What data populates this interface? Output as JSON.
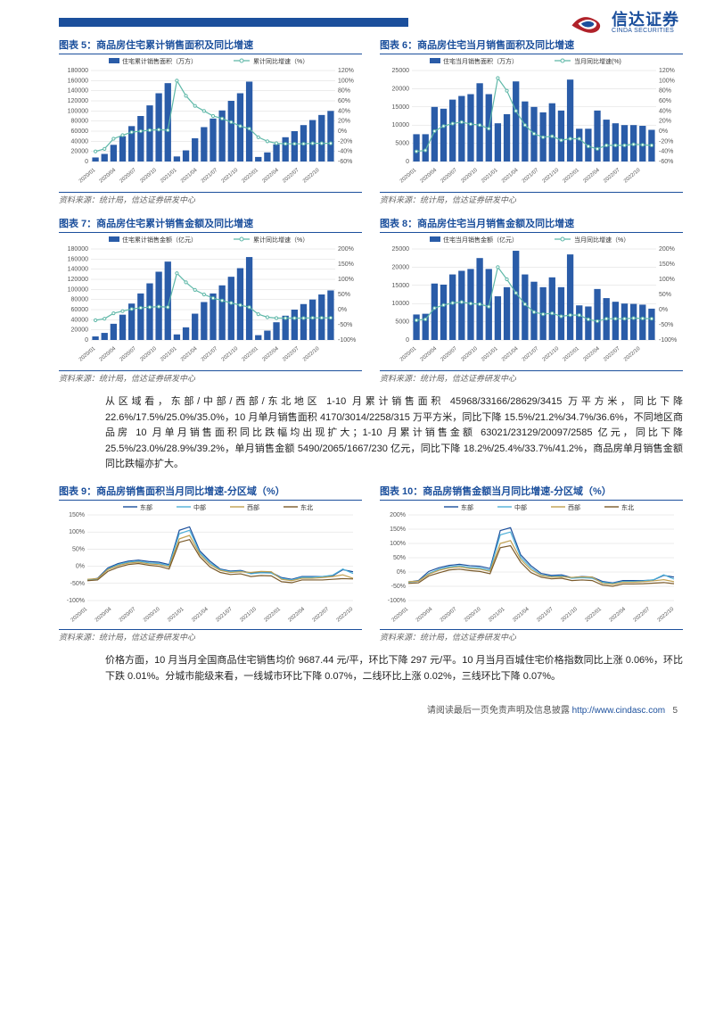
{
  "logo": {
    "cn": "信达证券",
    "en": "CINDA SECURITIES"
  },
  "charts": {
    "c5": {
      "title": "图表 5：商品房住宅累计销售面积及同比增速",
      "legend_bar": "住宅累计销售面积（万方）",
      "legend_line": "累计同比增速（%）",
      "y1_max": 180000,
      "y1_step": 20000,
      "y2_min": -60,
      "y2_max": 120,
      "y2_step": 20,
      "x_labels": [
        "2020/01",
        "2020/04",
        "2020/07",
        "2020/10",
        "2021/01",
        "2021/04",
        "2021/07",
        "2021/10",
        "2022/01",
        "2022/04",
        "2022/07",
        "2022/10"
      ],
      "bars": [
        8000,
        15000,
        33000,
        50000,
        70000,
        90000,
        111000,
        135000,
        155000,
        10000,
        22000,
        46000,
        68000,
        85000,
        101000,
        120000,
        135000,
        158000,
        9000,
        18000,
        34000,
        48000,
        60000,
        72000,
        82000,
        92000,
        100000
      ],
      "line": [
        -40,
        -35,
        -15,
        -8,
        -2,
        0,
        2,
        3,
        2,
        100,
        70,
        50,
        40,
        30,
        25,
        18,
        10,
        5,
        -12,
        -20,
        -24,
        -25,
        -25,
        -25,
        -24,
        -24,
        -24
      ],
      "colors": {
        "bar": "#2a5ca8",
        "line": "#5fb8a8",
        "grid": "#d8d8d8"
      }
    },
    "c6": {
      "title": "图表 6：商品房住宅当月销售面积及同比增速",
      "legend_bar": "住宅当月销售面积（万方）",
      "legend_line": "当月同比增速(%)",
      "y1_max": 25000,
      "y1_step": 5000,
      "y2_min": -60,
      "y2_max": 120,
      "y2_step": 20,
      "x_labels": [
        "2020/01",
        "2020/04",
        "2020/07",
        "2020/10",
        "2021/01",
        "2021/04",
        "2021/07",
        "2021/10",
        "2022/01",
        "2022/04",
        "2022/07",
        "2022/10"
      ],
      "bars": [
        7500,
        7500,
        15000,
        14500,
        17000,
        18000,
        18500,
        21500,
        18500,
        10500,
        13000,
        22000,
        16500,
        15000,
        13500,
        16000,
        14000,
        22500,
        9000,
        9000,
        14000,
        11500,
        10500,
        10000,
        10000,
        9800,
        8700
      ],
      "line": [
        -40,
        -38,
        0,
        10,
        15,
        18,
        14,
        12,
        5,
        105,
        80,
        40,
        12,
        -5,
        -12,
        -10,
        -18,
        -15,
        -15,
        -30,
        -35,
        -28,
        -28,
        -28,
        -26,
        -27,
        -28
      ],
      "colors": {
        "bar": "#2a5ca8",
        "line": "#5fb8a8",
        "grid": "#d8d8d8"
      }
    },
    "c7": {
      "title": "图表 7：商品房住宅累计销售金额及同比增速",
      "legend_bar": "住宅累计销售金额（亿元）",
      "legend_line": "累计同比增速（%）",
      "y1_max": 180000,
      "y1_step": 20000,
      "y2_min": -100,
      "y2_max": 200,
      "y2_step": 50,
      "x_labels": [
        "2020/01",
        "2020/04",
        "2020/07",
        "2020/10",
        "2021/01",
        "2021/04",
        "2021/07",
        "2021/10",
        "2022/01",
        "2022/04",
        "2022/07",
        "2022/10"
      ],
      "bars": [
        7000,
        14000,
        32000,
        50000,
        72000,
        92000,
        112000,
        135000,
        155000,
        11000,
        25000,
        52000,
        75000,
        92000,
        108000,
        125000,
        142000,
        164000,
        9500,
        18500,
        35000,
        48000,
        60000,
        71000,
        80000,
        90000,
        98000
      ],
      "line": [
        -35,
        -30,
        -12,
        -5,
        2,
        6,
        8,
        10,
        8,
        120,
        90,
        65,
        50,
        38,
        30,
        22,
        15,
        8,
        -15,
        -25,
        -28,
        -28,
        -28,
        -28,
        -27,
        -27,
        -27
      ],
      "colors": {
        "bar": "#2a5ca8",
        "line": "#5fb8a8",
        "grid": "#d8d8d8"
      }
    },
    "c8": {
      "title": "图表 8：商品房住宅当月销售金额及同比增速",
      "legend_bar": "住宅当月销售金额（亿元）",
      "legend_line": "当月同比增速（%）",
      "y1_max": 25000,
      "y1_step": 5000,
      "y2_min": -100,
      "y2_max": 200,
      "y2_step": 50,
      "x_labels": [
        "2020/01",
        "2020/04",
        "2020/07",
        "2020/10",
        "2021/01",
        "2021/04",
        "2021/07",
        "2021/10",
        "2022/01",
        "2022/04",
        "2022/07",
        "2022/10"
      ],
      "bars": [
        7000,
        7200,
        15500,
        15200,
        18000,
        19000,
        19500,
        22500,
        19500,
        12000,
        14500,
        24500,
        18000,
        16000,
        14500,
        17200,
        14500,
        23500,
        9500,
        9200,
        14000,
        11500,
        10500,
        10000,
        9900,
        9700,
        8600
      ],
      "line": [
        -35,
        -32,
        5,
        15,
        22,
        25,
        20,
        18,
        10,
        140,
        100,
        55,
        18,
        -8,
        -15,
        -12,
        -22,
        -18,
        -18,
        -32,
        -38,
        -30,
        -30,
        -30,
        -28,
        -29,
        -30
      ],
      "colors": {
        "bar": "#2a5ca8",
        "line": "#5fb8a8",
        "grid": "#d8d8d8"
      }
    },
    "c9": {
      "title": "图表 9：商品房销售面积当月同比增速-分区域（%）",
      "legend": [
        "东部",
        "中部",
        "西部",
        "东北"
      ],
      "y_min": -100,
      "y_max": 150,
      "y_step": 50,
      "x_labels": [
        "2020/01",
        "2020/04",
        "2020/07",
        "2020/10",
        "2021/01",
        "2021/04",
        "2021/07",
        "2021/10",
        "2022/01",
        "2022/04",
        "2022/07",
        "2022/10"
      ],
      "series": {
        "east": [
          -40,
          -35,
          -5,
          8,
          15,
          18,
          14,
          12,
          5,
          105,
          115,
          45,
          15,
          -8,
          -14,
          -12,
          -20,
          -17,
          -18,
          -33,
          -38,
          -30,
          -30,
          -30,
          -28,
          -10,
          -16
        ],
        "mid": [
          -40,
          -38,
          -8,
          5,
          12,
          15,
          10,
          8,
          2,
          95,
          105,
          40,
          10,
          -10,
          -16,
          -14,
          -22,
          -19,
          -20,
          -35,
          -40,
          -32,
          -32,
          -30,
          -26,
          -8,
          -21
        ],
        "west": [
          -38,
          -36,
          -10,
          2,
          9,
          12,
          7,
          5,
          -2,
          80,
          90,
          35,
          5,
          -12,
          -18,
          -16,
          -18,
          -15,
          -16,
          -38,
          -42,
          -35,
          -35,
          -33,
          -30,
          -25,
          -35
        ],
        "ne": [
          -42,
          -40,
          -15,
          -3,
          5,
          8,
          3,
          0,
          -8,
          70,
          78,
          28,
          -2,
          -18,
          -24,
          -22,
          -30,
          -27,
          -28,
          -45,
          -48,
          -40,
          -40,
          -40,
          -38,
          -36,
          -37
        ]
      },
      "colors": {
        "east": "#1b4f9c",
        "mid": "#4fb0d8",
        "west": "#c0a050",
        "ne": "#7a5a2a"
      }
    },
    "c10": {
      "title": "图表 10：商品房销售金额当月同比增速-分区域（%）",
      "legend": [
        "东部",
        "中部",
        "西部",
        "东北"
      ],
      "y_min": -100,
      "y_max": 200,
      "y_step": 50,
      "x_labels": [
        "2020/01",
        "2020/04",
        "2020/07",
        "2020/10",
        "2021/01",
        "2021/04",
        "2021/07",
        "2021/10",
        "2022/01",
        "2022/04",
        "2022/07",
        "2022/10"
      ],
      "series": {
        "east": [
          -35,
          -30,
          2,
          15,
          23,
          27,
          22,
          20,
          12,
          145,
          155,
          60,
          22,
          -5,
          -12,
          -10,
          -20,
          -16,
          -18,
          -33,
          -38,
          -30,
          -30,
          -30,
          -28,
          -12,
          -18
        ],
        "mid": [
          -36,
          -32,
          -5,
          10,
          18,
          22,
          16,
          14,
          6,
          130,
          140,
          52,
          15,
          -10,
          -16,
          -14,
          -22,
          -20,
          -22,
          -36,
          -40,
          -33,
          -33,
          -31,
          -27,
          -10,
          -25
        ],
        "west": [
          -34,
          -32,
          -8,
          6,
          14,
          18,
          12,
          10,
          2,
          100,
          110,
          44,
          8,
          -12,
          -18,
          -17,
          -19,
          -17,
          -18,
          -40,
          -43,
          -36,
          -36,
          -34,
          -31,
          -27,
          -34
        ],
        "ne": [
          -40,
          -38,
          -14,
          -3,
          7,
          10,
          5,
          2,
          -6,
          85,
          92,
          34,
          -2,
          -18,
          -24,
          -22,
          -30,
          -28,
          -30,
          -46,
          -50,
          -42,
          -42,
          -41,
          -39,
          -37,
          -41
        ]
      },
      "colors": {
        "east": "#1b4f9c",
        "mid": "#4fb0d8",
        "west": "#c0a050",
        "ne": "#7a5a2a"
      }
    },
    "source": "资料来源：统计局，信达证券研发中心"
  },
  "para1": "从区域看，东部/中部/西部/东北地区 1-10 月累计销售面积 45968/33166/28629/3415 万平方米，同比下降 22.6%/17.5%/25.0%/35.0%，10 月单月销售面积 4170/3014/2258/315 万平方米，同比下降 15.5%/21.2%/34.7%/36.6%，不同地区商品房 10 月单月销售面积同比跌幅均出现扩大；1-10 月累计销售金额 63021/23129/20097/2585 亿元，同比下降 25.5%/23.0%/28.9%/39.2%，单月销售金额 5490/2065/1667/230 亿元，同比下降 18.2%/25.4%/33.7%/41.2%，商品房单月销售金额同比跌幅亦扩大。",
  "para2": "价格方面，10 月当月全国商品住宅销售均价 9687.44 元/平，环比下降 297 元/平。10 月当月百城住宅价格指数同比上涨 0.06%，环比下跌 0.01%。分城市能级来看，一线城市环比下降 0.07%，二线环比上涨 0.02%，三线环比下降 0.07%。",
  "footer": {
    "text": "请阅读最后一页免责声明及信息披露 ",
    "url": "http://www.cindasc.com",
    "page": "5"
  }
}
